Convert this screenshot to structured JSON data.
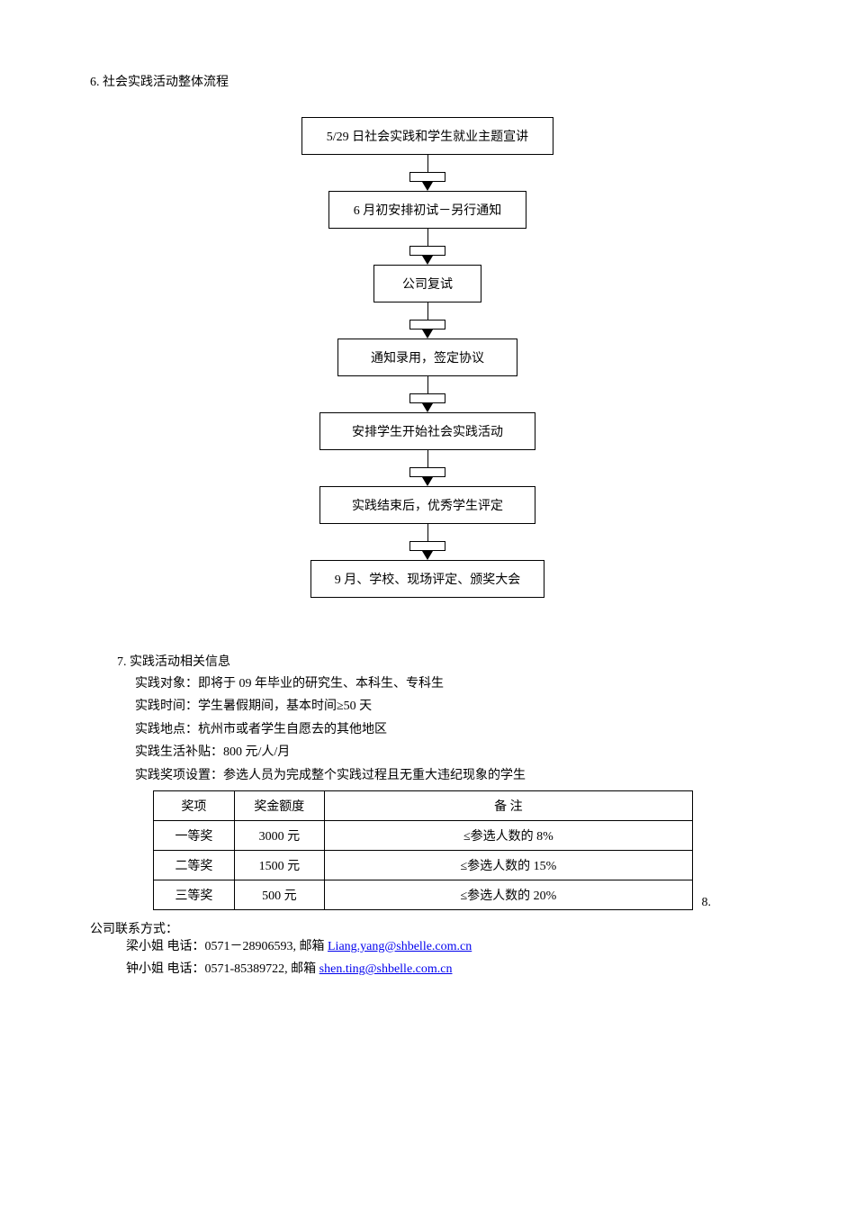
{
  "section6": {
    "title": "6. 社会实践活动整体流程",
    "steps": [
      "5/29 日社会实践和学生就业主题宣讲",
      "6 月初安排初试－另行通知",
      "公司复试",
      "通知录用，签定协议",
      "安排学生开始社会实践活动",
      "实践结束后，优秀学生评定",
      "9 月、学校、现场评定、颁奖大会"
    ]
  },
  "section7": {
    "title": "7. 实践活动相关信息",
    "lines": [
      "实践对象：即将于 09 年毕业的研究生、本科生、专科生",
      "实践时间：学生暑假期间，基本时间≥50 天",
      "实践地点：杭州市或者学生自愿去的其他地区",
      "实践生活补贴：800 元/人/月",
      "实践奖项设置：参选人员为完成整个实践过程且无重大违纪现象的学生"
    ]
  },
  "awardTable": {
    "headers": [
      "奖项",
      "奖金额度",
      "备        注"
    ],
    "rows": [
      [
        "一等奖",
        "3000 元",
        "≤参选人数的 8%"
      ],
      [
        "二等奖",
        "1500 元",
        "≤参选人数的 15%"
      ],
      [
        "三等奖",
        "500 元",
        "≤参选人数的 20%"
      ]
    ]
  },
  "sideNumber": "8.",
  "contact": {
    "title": "公司联系方式：",
    "lines": [
      {
        "prefix": "梁小姐   电话：0571－28906593,  邮箱 ",
        "email": "Liang.yang@shbelle.com.cn"
      },
      {
        "prefix": "钟小姐   电话：0571-85389722,   邮箱  ",
        "email": "shen.ting@shbelle.com.cn"
      }
    ]
  }
}
